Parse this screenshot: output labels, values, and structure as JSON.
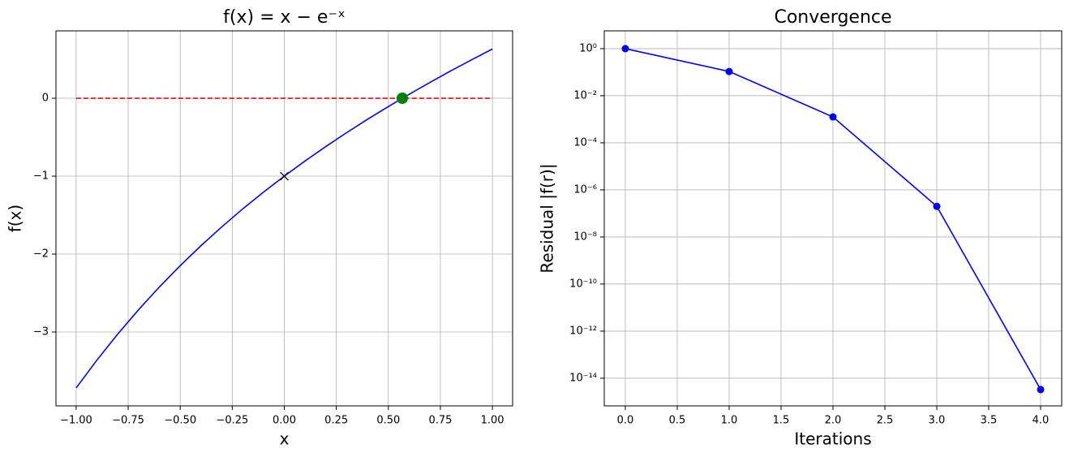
{
  "chart_data": [
    {
      "type": "line",
      "title": "f(x) = x − e⁻ˣ",
      "x_label": "x",
      "y_label": "f(x)",
      "xlim": [
        -1.097,
        1.097
      ],
      "ylim": [
        -3.948,
        0.865
      ],
      "grid": true,
      "log_y": false,
      "xticks": [
        {
          "value": -1,
          "label": "−1.00"
        },
        {
          "value": -0.75,
          "label": "−0.75"
        },
        {
          "value": -0.5,
          "label": "−0.50"
        },
        {
          "value": -0.25,
          "label": "−0.25"
        },
        {
          "value": 0,
          "label": "0.00"
        },
        {
          "value": 0.25,
          "label": "0.25"
        },
        {
          "value": 0.5,
          "label": "0.50"
        },
        {
          "value": 0.75,
          "label": "0.75"
        },
        {
          "value": 1,
          "label": "1.00"
        }
      ],
      "yticks": [
        {
          "value": -3,
          "label": "−3"
        },
        {
          "value": -2,
          "label": "−2"
        },
        {
          "value": -1,
          "label": "−1"
        },
        0
      ],
      "series": [
        {
          "color": "#0000ff",
          "linestyle": "solid",
          "x": [
            -1,
            -0.9,
            -0.8,
            -0.7,
            -0.6,
            -0.5,
            -0.4,
            -0.3,
            -0.2,
            -0.1,
            0,
            0.1,
            0.2,
            0.3,
            0.4,
            0.5,
            0.6,
            0.7,
            0.8,
            0.9,
            1
          ],
          "values": [
            -3.718,
            -3.36,
            -3.026,
            -2.714,
            -2.422,
            -2.149,
            -1.892,
            -1.65,
            -1.421,
            -1.205,
            -1,
            -0.805,
            -0.619,
            -0.441,
            -0.27,
            -0.107,
            0.051,
            0.203,
            0.351,
            0.493,
            0.632
          ]
        },
        {
          "color": "#ff0000",
          "linestyle": "dashed",
          "x": [
            -1,
            1
          ],
          "values": [
            0,
            0
          ]
        },
        {
          "color": "#000000",
          "linestyle": "none",
          "marker": "x",
          "markersize": 14,
          "x": [
            0
          ],
          "values": [
            -1
          ]
        },
        {
          "color": "#008000",
          "linestyle": "none",
          "marker": "o",
          "markersize": 14,
          "x": [
            0.567
          ],
          "values": [
            0
          ]
        }
      ]
    },
    {
      "type": "line",
      "title": "Convergence",
      "x_label": "Iterations",
      "y_label": "Residual |f(r)|",
      "xlim": [
        -0.203,
        4.203
      ],
      "ylim": [
        6.7e-16,
        5.7
      ],
      "grid": true,
      "log_y": true,
      "xticks": [
        {
          "value": 0,
          "label": "0.0"
        },
        {
          "value": 0.5,
          "label": "0.5"
        },
        {
          "value": 1,
          "label": "1.0"
        },
        {
          "value": 1.5,
          "label": "1.5"
        },
        {
          "value": 2,
          "label": "2.0"
        },
        {
          "value": 2.5,
          "label": "2.5"
        },
        {
          "value": 3,
          "label": "3.0"
        },
        {
          "value": 3.5,
          "label": "3.5"
        },
        {
          "value": 4,
          "label": "4.0"
        }
      ],
      "yticks": [
        {
          "value": 1e-14,
          "label": "10⁻¹⁴"
        },
        {
          "value": 1e-12,
          "label": "10⁻¹²"
        },
        {
          "value": 1e-10,
          "label": "10⁻¹⁰"
        },
        {
          "value": 1e-08,
          "label": "10⁻⁸"
        },
        {
          "value": 1e-06,
          "label": "10⁻⁶"
        },
        {
          "value": 0.0001,
          "label": "10⁻⁴"
        },
        {
          "value": 0.01,
          "label": "10⁻²"
        },
        {
          "value": 1,
          "label": "10⁰"
        }
      ],
      "series": [
        {
          "color": "#0000ff",
          "linestyle": "solid",
          "marker": "o",
          "markersize": 9,
          "x": [
            0,
            1,
            2,
            3,
            4
          ],
          "values": [
            1,
            0.107,
            0.00126,
            2e-07,
            3.3e-15
          ]
        }
      ]
    }
  ]
}
